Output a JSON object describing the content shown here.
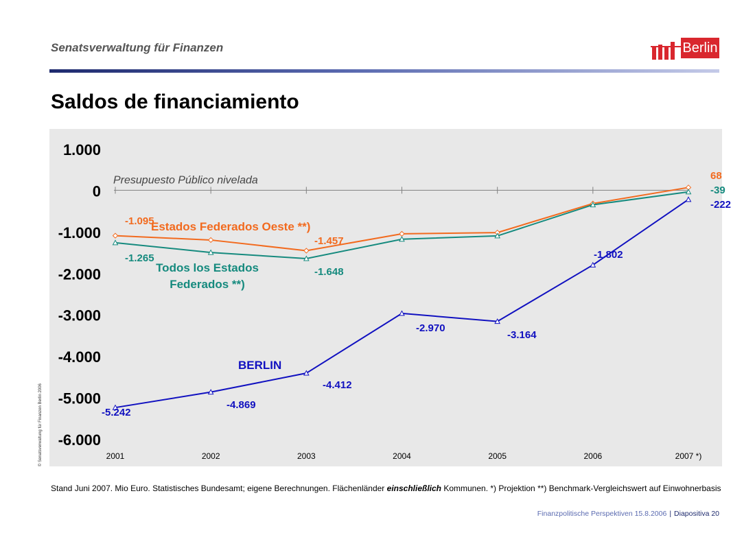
{
  "header": {
    "title": "Senatsverwaltung für Finanzen",
    "logo_text": "Berlin"
  },
  "page_title": "Saldos de financiamiento",
  "chart_data": {
    "type": "line",
    "title": "",
    "xlabel": "",
    "ylabel": "",
    "categories": [
      "2001",
      "2002",
      "2003",
      "2004",
      "2005",
      "2006",
      "2007 *)"
    ],
    "ylim": [
      -6000,
      1000
    ],
    "yticks": [
      1000,
      0,
      -1000,
      -2000,
      -3000,
      -4000,
      -5000,
      -6000
    ],
    "ytick_labels": [
      "1.000",
      "0",
      "-1.000",
      "-2.000",
      "-3.000",
      "-4.000",
      "-5.000",
      "-6.000"
    ],
    "grid": false,
    "background": "#e8e8e8",
    "reference_line": {
      "label": "Presupuesto Público nivelada",
      "value": 0
    },
    "series": [
      {
        "name": "Estados Federados Oeste **)",
        "color": "#f26a1e",
        "marker": "diamond",
        "values": [
          -1095,
          -1200,
          -1457,
          -1050,
          -1020,
          -320,
          68
        ],
        "labels": {
          "0": "-1.095",
          "2": "-1.457",
          "6": "68"
        }
      },
      {
        "name": "Todos los Estados Federados **)",
        "color": "#158a7e",
        "marker": "triangle",
        "values": [
          -1265,
          -1500,
          -1648,
          -1180,
          -1100,
          -350,
          -39
        ],
        "labels": {
          "0": "-1.265",
          "2": "-1.648",
          "6": "-39"
        }
      },
      {
        "name": "BERLIN",
        "color": "#1010c0",
        "marker": "triangle",
        "values": [
          -5242,
          -4869,
          -4412,
          -2970,
          -3164,
          -1802,
          -222
        ],
        "labels": {
          "0": "-5.242",
          "1": "-4.869",
          "2": "-4.412",
          "3": "-2.970",
          "4": "-3.164",
          "5": "-1.802",
          "6": "-222"
        }
      }
    ],
    "series_name_lines": {
      "Estados Federados Oeste **)": [
        "Estados Federados Oeste **)"
      ],
      "Todos los Estados Federados **)": [
        "Todos los Estados",
        "Federados **)"
      ],
      "BERLIN": [
        "BERLIN"
      ]
    }
  },
  "footnote": {
    "part1": "Stand Juni 2007. Mio Euro. Statistisches Bundesamt; eigene Berechnungen. Flächenländer ",
    "emphasis": "einschließlich",
    "part2": " Kommunen.   *) Projektion     **) Benchmark-Vergleichswert auf Einwohnerbasis"
  },
  "copyright": "© Senatsverwaltung für Finanzen Berlin 2006",
  "footer": {
    "text": "Finanzpolitische Perspektiven 15.8.2006",
    "separator": "|",
    "slide": "Diapositiva 20"
  }
}
